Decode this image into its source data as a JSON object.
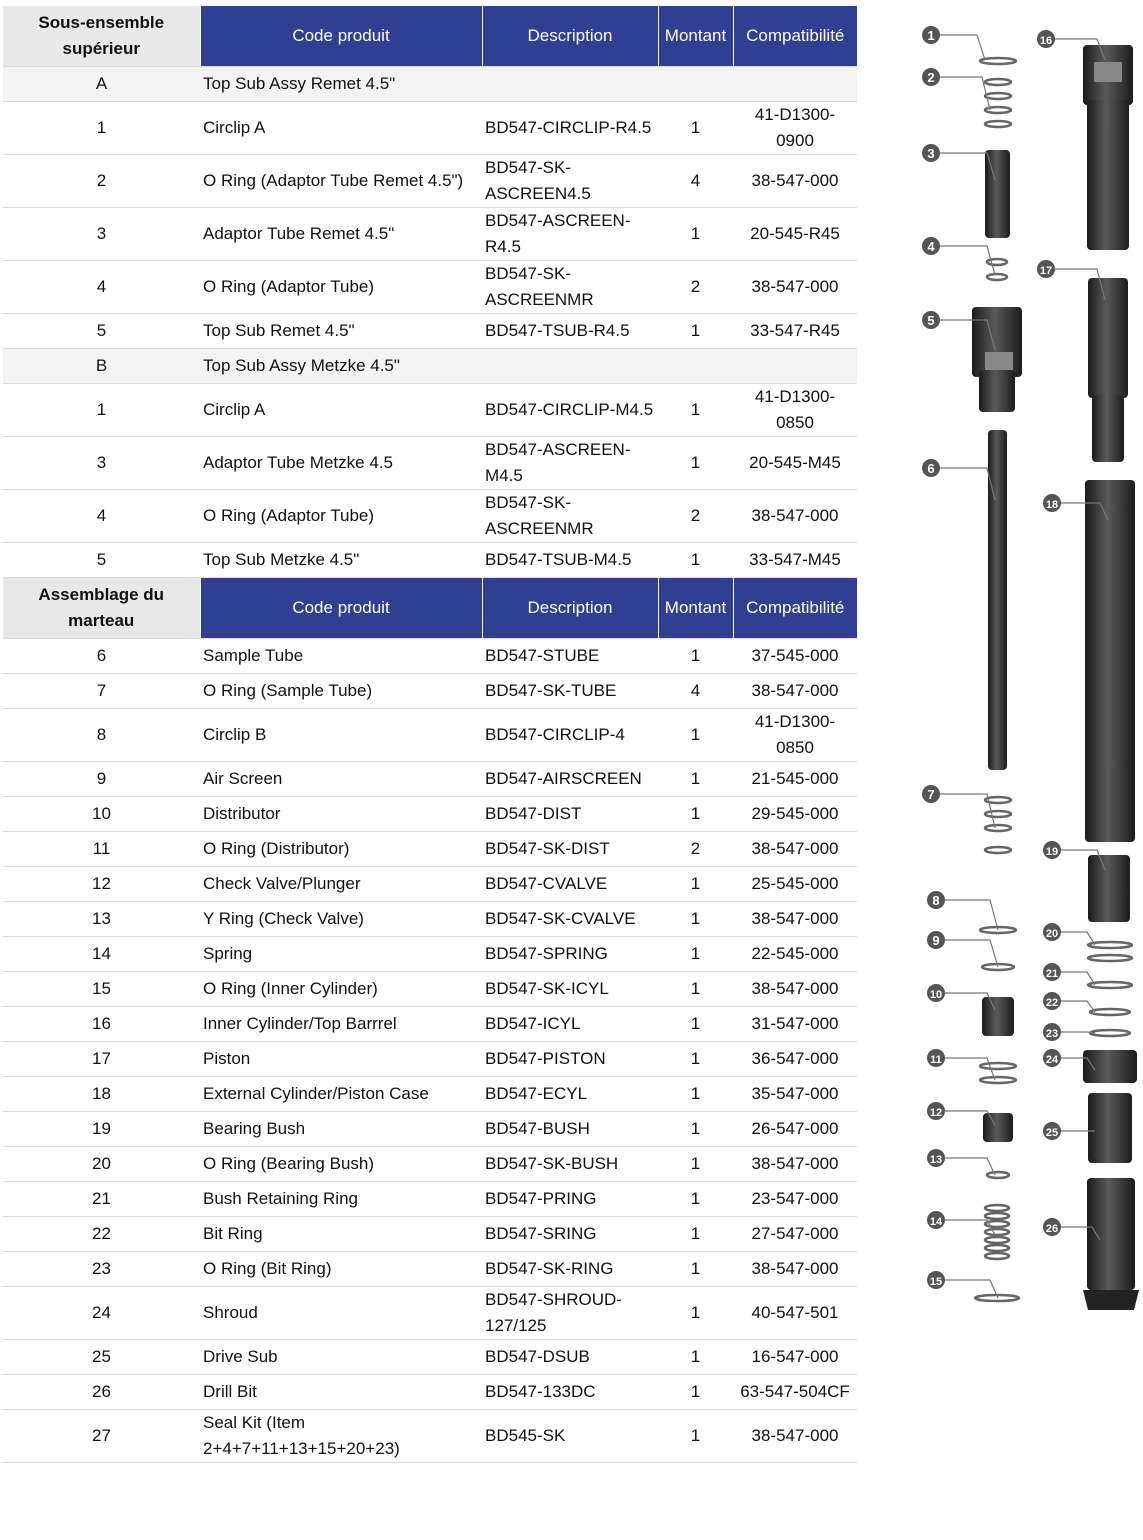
{
  "sections": [
    {
      "header": [
        "Sous-ensemble supérieur",
        "Code produit",
        "Description",
        "Montant",
        "Compatibilité"
      ],
      "rows": [
        {
          "type": "group",
          "cells": [
            "A",
            "Top Sub Assy Remet 4.5\""
          ]
        },
        {
          "type": "item",
          "cells": [
            "1",
            "Circlip A",
            "BD547-CIRCLIP-R4.5",
            "1",
            "41-D1300-0900"
          ]
        },
        {
          "type": "item",
          "cells": [
            "2",
            "O Ring (Adaptor Tube Remet 4.5\")",
            "BD547-SK-ASCREEN4.5",
            "4",
            "38-547-000"
          ]
        },
        {
          "type": "item",
          "cells": [
            "3",
            "Adaptor Tube Remet 4.5\"",
            "BD547-ASCREEN-R4.5",
            "1",
            "20-545-R45"
          ]
        },
        {
          "type": "item",
          "cells": [
            "4",
            "O Ring (Adaptor Tube)",
            "BD547-SK-ASCREENMR",
            "2",
            "38-547-000"
          ]
        },
        {
          "type": "item",
          "cells": [
            "5",
            "Top Sub Remet 4.5\"",
            "BD547-TSUB-R4.5",
            "1",
            "33-547-R45"
          ]
        },
        {
          "type": "group",
          "cells": [
            "B",
            "Top Sub Assy Metzke 4.5\""
          ]
        },
        {
          "type": "item",
          "cells": [
            "1",
            "Circlip A",
            "BD547-CIRCLIP-M4.5",
            "1",
            "41-D1300-0850"
          ]
        },
        {
          "type": "item",
          "cells": [
            "3",
            "Adaptor Tube Metzke 4.5",
            "BD547-ASCREEN-M4.5",
            "1",
            "20-545-M45"
          ]
        },
        {
          "type": "item",
          "cells": [
            "4",
            "O Ring (Adaptor Tube)",
            "BD547-SK-ASCREENMR",
            "2",
            "38-547-000"
          ]
        },
        {
          "type": "item",
          "cells": [
            "5",
            "Top Sub Metzke 4.5\"",
            "BD547-TSUB-M4.5",
            "1",
            "33-547-M45"
          ]
        }
      ]
    },
    {
      "header": [
        "Assemblage du marteau",
        "Code produit",
        "Description",
        "Montant",
        "Compatibilité"
      ],
      "rows": [
        {
          "type": "item",
          "cells": [
            "6",
            "Sample Tube",
            "BD547-STUBE",
            "1",
            "37-545-000"
          ]
        },
        {
          "type": "item",
          "cells": [
            "7",
            "O Ring (Sample Tube)",
            "BD547-SK-TUBE",
            "4",
            "38-547-000"
          ]
        },
        {
          "type": "item",
          "cells": [
            "8",
            "Circlip B",
            "BD547-CIRCLIP-4",
            "1",
            "41-D1300-0850"
          ]
        },
        {
          "type": "item",
          "cells": [
            "9",
            "Air Screen",
            "BD547-AIRSCREEN",
            "1",
            "21-545-000"
          ]
        },
        {
          "type": "item",
          "cells": [
            "10",
            "Distributor",
            "BD547-DIST",
            "1",
            "29-545-000"
          ]
        },
        {
          "type": "item",
          "cells": [
            "11",
            "O Ring (Distributor)",
            "BD547-SK-DIST",
            "2",
            "38-547-000"
          ]
        },
        {
          "type": "item",
          "cells": [
            "12",
            "Check Valve/Plunger",
            "BD547-CVALVE",
            "1",
            "25-545-000"
          ]
        },
        {
          "type": "item",
          "cells": [
            "13",
            "Y Ring (Check Valve)",
            "BD547-SK-CVALVE",
            "1",
            "38-547-000"
          ]
        },
        {
          "type": "item",
          "cells": [
            "14",
            "Spring",
            "BD547-SPRING",
            "1",
            "22-545-000"
          ]
        },
        {
          "type": "item",
          "cells": [
            "15",
            "O Ring (Inner Cylinder)",
            "BD547-SK-ICYL",
            "1",
            "38-547-000"
          ]
        },
        {
          "type": "item",
          "cells": [
            "16",
            "Inner Cylinder/Top Barrrel",
            "BD547-ICYL",
            "1",
            "31-547-000"
          ]
        },
        {
          "type": "item",
          "cells": [
            "17",
            "Piston",
            "BD547-PISTON",
            "1",
            "36-547-000"
          ]
        },
        {
          "type": "item",
          "cells": [
            "18",
            "External Cylinder/Piston Case",
            "BD547-ECYL",
            "1",
            "35-547-000"
          ]
        },
        {
          "type": "item",
          "cells": [
            "19",
            "Bearing Bush",
            "BD547-BUSH",
            "1",
            "26-547-000"
          ]
        },
        {
          "type": "item",
          "cells": [
            "20",
            "O Ring (Bearing Bush)",
            "BD547-SK-BUSH",
            "1",
            "38-547-000"
          ]
        },
        {
          "type": "item",
          "cells": [
            "21",
            "Bush Retaining Ring",
            "BD547-PRING",
            "1",
            "23-547-000"
          ]
        },
        {
          "type": "item",
          "cells": [
            "22",
            "Bit Ring",
            "BD547-SRING",
            "1",
            "27-547-000"
          ]
        },
        {
          "type": "item",
          "cells": [
            "23",
            "O Ring (Bit Ring)",
            "BD547-SK-RING",
            "1",
            "38-547-000"
          ]
        },
        {
          "type": "item",
          "cells": [
            "24",
            "Shroud",
            "BD547-SHROUD-127/125",
            "1",
            "40-547-501"
          ]
        },
        {
          "type": "item",
          "cells": [
            "25",
            "Drive Sub",
            "BD547-DSUB",
            "1",
            "16-547-000"
          ]
        },
        {
          "type": "item",
          "cells": [
            "26",
            "Drill Bit",
            "BD547-133DC",
            "1",
            "63-547-504CF"
          ]
        },
        {
          "type": "item",
          "cells": [
            "27",
            "Seal Kit (Item 2+4+7+11+13+15+20+23)",
            "BD545-SK",
            "1",
            "38-547-000"
          ]
        }
      ]
    }
  ],
  "diagram": {
    "callouts": [
      "1",
      "2",
      "3",
      "4",
      "5",
      "6",
      "7",
      "8",
      "9",
      "10",
      "11",
      "12",
      "13",
      "14",
      "15",
      "16",
      "17",
      "18",
      "19",
      "20",
      "21",
      "22",
      "23",
      "24",
      "25",
      "26"
    ]
  },
  "colors": {
    "header_bg": "#2f3f93",
    "header_first_bg": "#e8e8e8",
    "group_row_bg": "#f3f3f3"
  }
}
